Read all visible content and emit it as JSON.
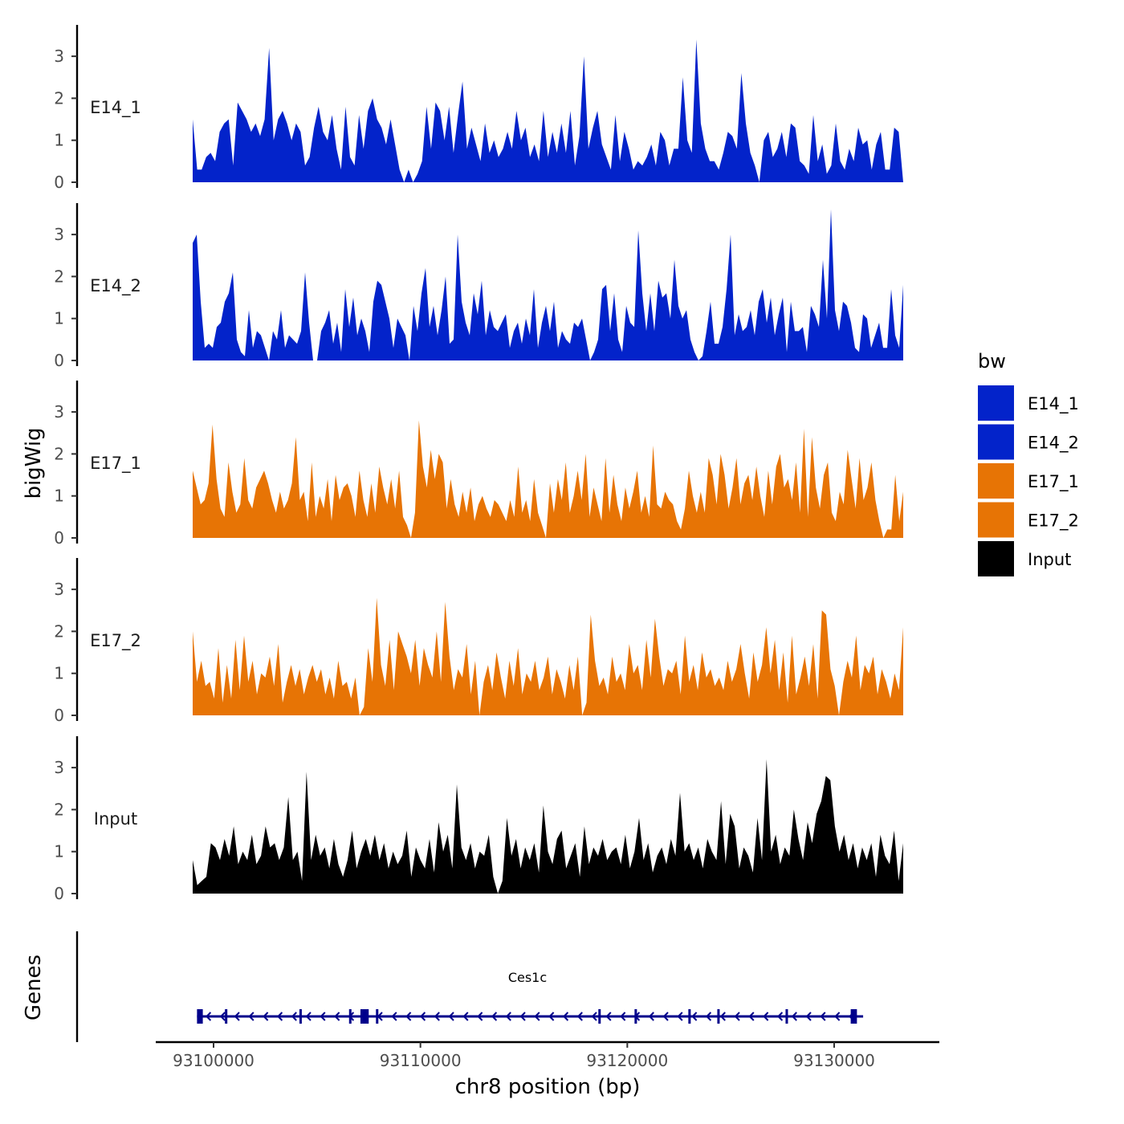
{
  "chart_data": {
    "type": "area",
    "chromosome": "chr8",
    "region": [
      93099200,
      93133400
    ],
    "ylabel": "bigWig",
    "xlabel": "chr8 position (bp)",
    "y_ticks": [
      0,
      1,
      2,
      3
    ],
    "ylim": [
      0,
      3.75
    ],
    "x_ticks": [
      93100000,
      93110000,
      93120000,
      93130000
    ],
    "x_tick_labels": [
      "93100000",
      "93110000",
      "93120000",
      "93130000"
    ],
    "tracks": [
      {
        "name": "E14_1",
        "color": "#0323CA",
        "values": [
          1.5,
          0.3,
          0.3,
          0.6,
          0.7,
          0.5,
          1.2,
          1.4,
          1.5,
          0.4,
          1.9,
          1.7,
          1.5,
          1.2,
          1.4,
          1.1,
          1.5,
          3.2,
          1.0,
          1.5,
          1.7,
          1.4,
          1.0,
          1.4,
          1.2,
          0.4,
          0.6,
          1.3,
          1.8,
          1.2,
          1.0,
          1.6,
          0.8,
          0.3,
          1.8,
          0.6,
          0.4,
          1.6,
          0.8,
          1.7,
          2.0,
          1.5,
          1.3,
          0.9,
          1.5,
          0.9,
          0.3,
          0.0,
          0.3,
          0.0,
          0.2,
          0.5,
          1.8,
          0.8,
          1.9,
          1.7,
          1.0,
          1.8,
          0.7,
          1.6,
          2.4,
          0.8,
          1.3,
          0.9,
          0.5,
          1.4,
          0.7,
          1.0,
          0.6,
          0.8,
          1.2,
          0.8,
          1.7,
          1.0,
          1.3,
          0.6,
          0.9,
          0.5,
          1.7,
          0.6,
          1.2,
          0.7,
          1.4,
          0.7,
          1.7,
          0.4,
          1.1,
          3.0,
          0.8,
          1.3,
          1.7,
          0.9,
          0.6,
          0.3,
          1.6,
          0.5,
          1.2,
          0.8,
          0.3,
          0.5,
          0.4,
          0.6,
          0.9,
          0.4,
          1.2,
          1.0,
          0.4,
          0.8,
          0.8,
          2.5,
          1.0,
          0.7,
          3.4,
          1.4,
          0.8,
          0.5,
          0.5,
          0.3,
          0.7,
          1.2,
          1.1,
          0.8,
          2.6,
          1.4,
          0.7,
          0.4,
          0.0,
          1.0,
          1.2,
          0.6,
          0.8,
          1.2,
          0.6,
          1.4,
          1.3,
          0.5,
          0.4,
          0.2,
          1.6,
          0.5,
          0.9,
          0.2,
          0.4,
          1.4,
          0.5,
          0.3,
          0.8,
          0.5,
          1.3,
          0.9,
          1.0,
          0.3,
          0.9,
          1.2,
          0.3,
          0.3,
          1.3,
          1.2,
          0.0
        ]
      },
      {
        "name": "E14_2",
        "color": "#0323CA",
        "values": [
          2.8,
          3.0,
          1.4,
          0.3,
          0.4,
          0.3,
          0.8,
          0.9,
          1.4,
          1.6,
          2.1,
          0.5,
          0.2,
          0.1,
          1.2,
          0.3,
          0.7,
          0.6,
          0.3,
          0.0,
          0.7,
          0.5,
          1.2,
          0.3,
          0.6,
          0.5,
          0.4,
          0.7,
          2.1,
          0.9,
          0.0,
          0.0,
          0.7,
          0.9,
          1.2,
          0.4,
          0.9,
          0.2,
          1.7,
          0.8,
          1.5,
          0.6,
          1.0,
          0.7,
          0.2,
          1.4,
          1.9,
          1.8,
          1.4,
          1.0,
          0.3,
          1.0,
          0.8,
          0.6,
          0.0,
          1.3,
          0.7,
          1.6,
          2.2,
          0.8,
          1.3,
          0.6,
          1.2,
          2.0,
          0.4,
          0.5,
          3.0,
          1.4,
          0.9,
          0.6,
          1.6,
          1.1,
          1.9,
          0.6,
          1.2,
          0.8,
          0.7,
          0.9,
          1.1,
          0.3,
          0.7,
          0.9,
          0.4,
          1.0,
          0.6,
          1.7,
          0.3,
          0.9,
          1.3,
          0.7,
          1.4,
          0.3,
          0.7,
          0.5,
          0.4,
          0.9,
          0.8,
          1.0,
          0.5,
          0.0,
          0.2,
          0.5,
          1.7,
          1.8,
          0.7,
          1.6,
          0.5,
          0.2,
          1.3,
          0.9,
          0.8,
          3.1,
          1.6,
          0.7,
          1.6,
          0.7,
          1.9,
          1.5,
          1.6,
          1.0,
          2.4,
          1.3,
          1.0,
          1.2,
          0.5,
          0.2,
          0.0,
          0.1,
          0.7,
          1.4,
          0.4,
          0.4,
          0.8,
          1.7,
          3.0,
          0.6,
          1.1,
          0.7,
          0.8,
          1.2,
          0.6,
          1.4,
          1.7,
          0.9,
          1.5,
          0.6,
          1.1,
          1.5,
          0.2,
          1.4,
          0.7,
          0.7,
          0.8,
          0.2,
          1.3,
          1.1,
          0.8,
          2.4,
          1.0,
          3.6,
          1.2,
          0.7,
          1.4,
          1.3,
          0.9,
          0.3,
          0.2,
          1.1,
          1.0,
          0.3,
          0.6,
          0.9,
          0.3,
          0.3,
          1.7,
          0.6,
          0.3,
          1.8
        ]
      },
      {
        "name": "E17_1",
        "color": "#E77405",
        "values": [
          1.6,
          1.2,
          0.8,
          0.9,
          1.3,
          2.7,
          1.4,
          0.7,
          0.5,
          1.8,
          1.1,
          0.6,
          0.8,
          1.9,
          0.9,
          0.7,
          1.2,
          1.4,
          1.6,
          1.3,
          0.9,
          0.6,
          1.1,
          0.7,
          0.9,
          1.3,
          2.4,
          0.9,
          1.1,
          0.4,
          1.8,
          0.5,
          1.0,
          0.7,
          1.4,
          0.4,
          1.5,
          0.9,
          1.2,
          1.3,
          1.0,
          0.5,
          1.6,
          0.9,
          0.5,
          1.3,
          0.6,
          1.7,
          1.2,
          0.8,
          1.4,
          0.7,
          1.6,
          0.5,
          0.3,
          0.0,
          0.6,
          2.8,
          1.7,
          1.2,
          2.1,
          1.4,
          2.0,
          1.8,
          0.7,
          1.4,
          0.8,
          0.5,
          1.1,
          0.6,
          1.2,
          0.4,
          0.8,
          1.0,
          0.7,
          0.5,
          0.9,
          0.8,
          0.6,
          0.4,
          0.9,
          0.5,
          1.7,
          0.6,
          0.9,
          0.4,
          1.4,
          0.6,
          0.3,
          0.0,
          1.3,
          0.6,
          1.4,
          0.9,
          1.8,
          0.6,
          1.0,
          1.6,
          0.9,
          2.0,
          0.5,
          1.2,
          0.8,
          0.4,
          1.9,
          0.6,
          1.5,
          0.8,
          0.4,
          1.2,
          0.7,
          1.1,
          1.6,
          0.6,
          1.0,
          0.5,
          2.2,
          0.8,
          0.7,
          1.1,
          0.9,
          0.8,
          0.4,
          0.2,
          0.7,
          1.6,
          1.0,
          0.6,
          1.1,
          0.6,
          1.9,
          1.5,
          0.8,
          2.0,
          1.5,
          0.7,
          1.2,
          1.9,
          0.8,
          1.3,
          1.5,
          0.9,
          1.7,
          1.0,
          0.5,
          1.6,
          0.8,
          1.7,
          2.0,
          1.2,
          1.4,
          0.9,
          1.8,
          0.6,
          2.6,
          0.5,
          2.4,
          1.2,
          0.7,
          1.5,
          1.8,
          0.6,
          0.4,
          1.1,
          0.8,
          2.1,
          1.4,
          0.7,
          1.9,
          0.9,
          1.2,
          1.8,
          0.9,
          0.4,
          0.0,
          0.2,
          0.2,
          1.5,
          0.4,
          1.1
        ]
      },
      {
        "name": "E17_2",
        "color": "#E77405",
        "values": [
          2.0,
          0.8,
          1.3,
          0.7,
          0.8,
          0.4,
          1.6,
          0.3,
          1.2,
          0.4,
          1.8,
          0.6,
          1.9,
          0.8,
          1.3,
          0.5,
          1.0,
          0.9,
          1.4,
          0.7,
          1.7,
          0.3,
          0.8,
          1.2,
          0.7,
          1.1,
          0.5,
          0.9,
          1.2,
          0.8,
          1.1,
          0.5,
          0.9,
          0.4,
          1.3,
          0.7,
          0.8,
          0.4,
          0.9,
          0.0,
          0.2,
          1.6,
          0.8,
          2.8,
          1.2,
          0.7,
          1.8,
          0.6,
          2.0,
          1.7,
          1.4,
          1.0,
          1.8,
          0.7,
          1.6,
          1.2,
          0.9,
          2.0,
          0.8,
          2.7,
          1.4,
          0.6,
          1.1,
          0.9,
          1.7,
          0.5,
          1.3,
          0.0,
          0.8,
          1.2,
          0.6,
          1.5,
          0.9,
          0.4,
          1.3,
          0.7,
          1.6,
          0.5,
          1.0,
          0.8,
          1.3,
          0.6,
          0.9,
          1.4,
          0.5,
          1.1,
          0.8,
          0.4,
          1.2,
          0.6,
          1.4,
          0.0,
          0.3,
          2.4,
          1.3,
          0.7,
          0.9,
          0.5,
          1.4,
          0.8,
          1.0,
          0.6,
          1.7,
          1.0,
          1.2,
          0.6,
          1.8,
          0.9,
          2.3,
          1.4,
          0.7,
          1.1,
          1.0,
          1.3,
          0.5,
          1.9,
          0.8,
          1.2,
          0.6,
          1.5,
          0.9,
          1.1,
          0.7,
          0.9,
          0.6,
          1.3,
          0.8,
          1.1,
          1.7,
          1.0,
          0.4,
          1.5,
          0.8,
          1.2,
          2.1,
          1.0,
          1.8,
          0.6,
          1.5,
          0.3,
          1.9,
          0.5,
          0.9,
          1.4,
          0.7,
          1.7,
          0.4,
          2.5,
          2.4,
          1.1,
          0.7,
          0.0,
          0.8,
          1.3,
          0.9,
          1.9,
          0.6,
          1.2,
          1.0,
          1.4,
          0.5,
          1.1,
          0.8,
          0.4,
          1.0,
          0.6,
          2.1
        ]
      },
      {
        "name": "Input",
        "color": "#000000",
        "values": [
          0.8,
          0.2,
          0.3,
          0.4,
          1.2,
          1.1,
          0.8,
          1.3,
          0.9,
          1.6,
          0.7,
          1.0,
          0.8,
          1.4,
          0.7,
          0.9,
          1.6,
          1.1,
          1.2,
          0.8,
          1.1,
          2.3,
          0.8,
          1.0,
          0.3,
          2.9,
          0.8,
          1.4,
          0.9,
          1.1,
          0.6,
          1.3,
          0.7,
          0.4,
          0.8,
          1.5,
          0.6,
          1.0,
          1.3,
          0.9,
          1.4,
          0.8,
          1.2,
          0.6,
          1.0,
          0.7,
          0.9,
          1.5,
          0.4,
          1.1,
          0.8,
          0.6,
          1.3,
          0.5,
          1.7,
          1.0,
          1.4,
          0.6,
          2.6,
          1.1,
          0.8,
          1.2,
          0.6,
          1.0,
          0.9,
          1.4,
          0.4,
          0.0,
          0.3,
          1.8,
          0.9,
          1.3,
          0.6,
          1.1,
          0.8,
          1.2,
          0.5,
          2.1,
          1.0,
          0.7,
          1.3,
          1.5,
          0.6,
          0.9,
          1.2,
          0.4,
          1.6,
          0.7,
          1.1,
          0.9,
          1.3,
          0.8,
          1.0,
          1.1,
          0.7,
          1.4,
          0.6,
          1.0,
          1.8,
          0.8,
          1.2,
          0.5,
          0.9,
          1.1,
          0.7,
          1.3,
          0.9,
          2.4,
          1.0,
          1.2,
          0.8,
          1.1,
          0.6,
          1.3,
          1.0,
          0.8,
          2.2,
          0.7,
          1.9,
          1.6,
          0.6,
          1.1,
          0.9,
          0.5,
          1.8,
          0.8,
          3.2,
          1.0,
          1.4,
          0.7,
          1.1,
          0.9,
          2.0,
          1.3,
          0.8,
          1.7,
          1.2,
          1.9,
          2.2,
          2.8,
          2.7,
          1.6,
          1.0,
          1.4,
          0.8,
          1.2,
          0.6,
          1.1,
          0.8,
          1.2,
          0.4,
          1.4,
          0.9,
          0.7,
          1.5,
          0.3,
          1.2
        ]
      }
    ],
    "legend": {
      "title": "bw",
      "items": [
        {
          "label": "E14_1",
          "color": "#0323CA"
        },
        {
          "label": "E14_2",
          "color": "#0323CA"
        },
        {
          "label": "E17_1",
          "color": "#E77405"
        },
        {
          "label": "E17_2",
          "color": "#E77405"
        },
        {
          "label": "Input",
          "color": "#000000"
        }
      ]
    },
    "genes_track": {
      "title": "Genes",
      "gene_name": "Ces1c",
      "strand": "-",
      "start": 93099200,
      "end": 93131400,
      "color": "#00008B",
      "exons": [
        {
          "start": 93099200,
          "end": 93099480
        },
        {
          "start": 93100550,
          "end": 93100600
        },
        {
          "start": 93104150,
          "end": 93104220
        },
        {
          "start": 93106550,
          "end": 93106620
        },
        {
          "start": 93107100,
          "end": 93107500
        },
        {
          "start": 93107850,
          "end": 93107920
        },
        {
          "start": 93118600,
          "end": 93118680
        },
        {
          "start": 93120350,
          "end": 93120420
        },
        {
          "start": 93122950,
          "end": 93123020
        },
        {
          "start": 93124350,
          "end": 93124420
        },
        {
          "start": 93127650,
          "end": 93127720
        },
        {
          "start": 93130800,
          "end": 93131100
        }
      ]
    }
  }
}
